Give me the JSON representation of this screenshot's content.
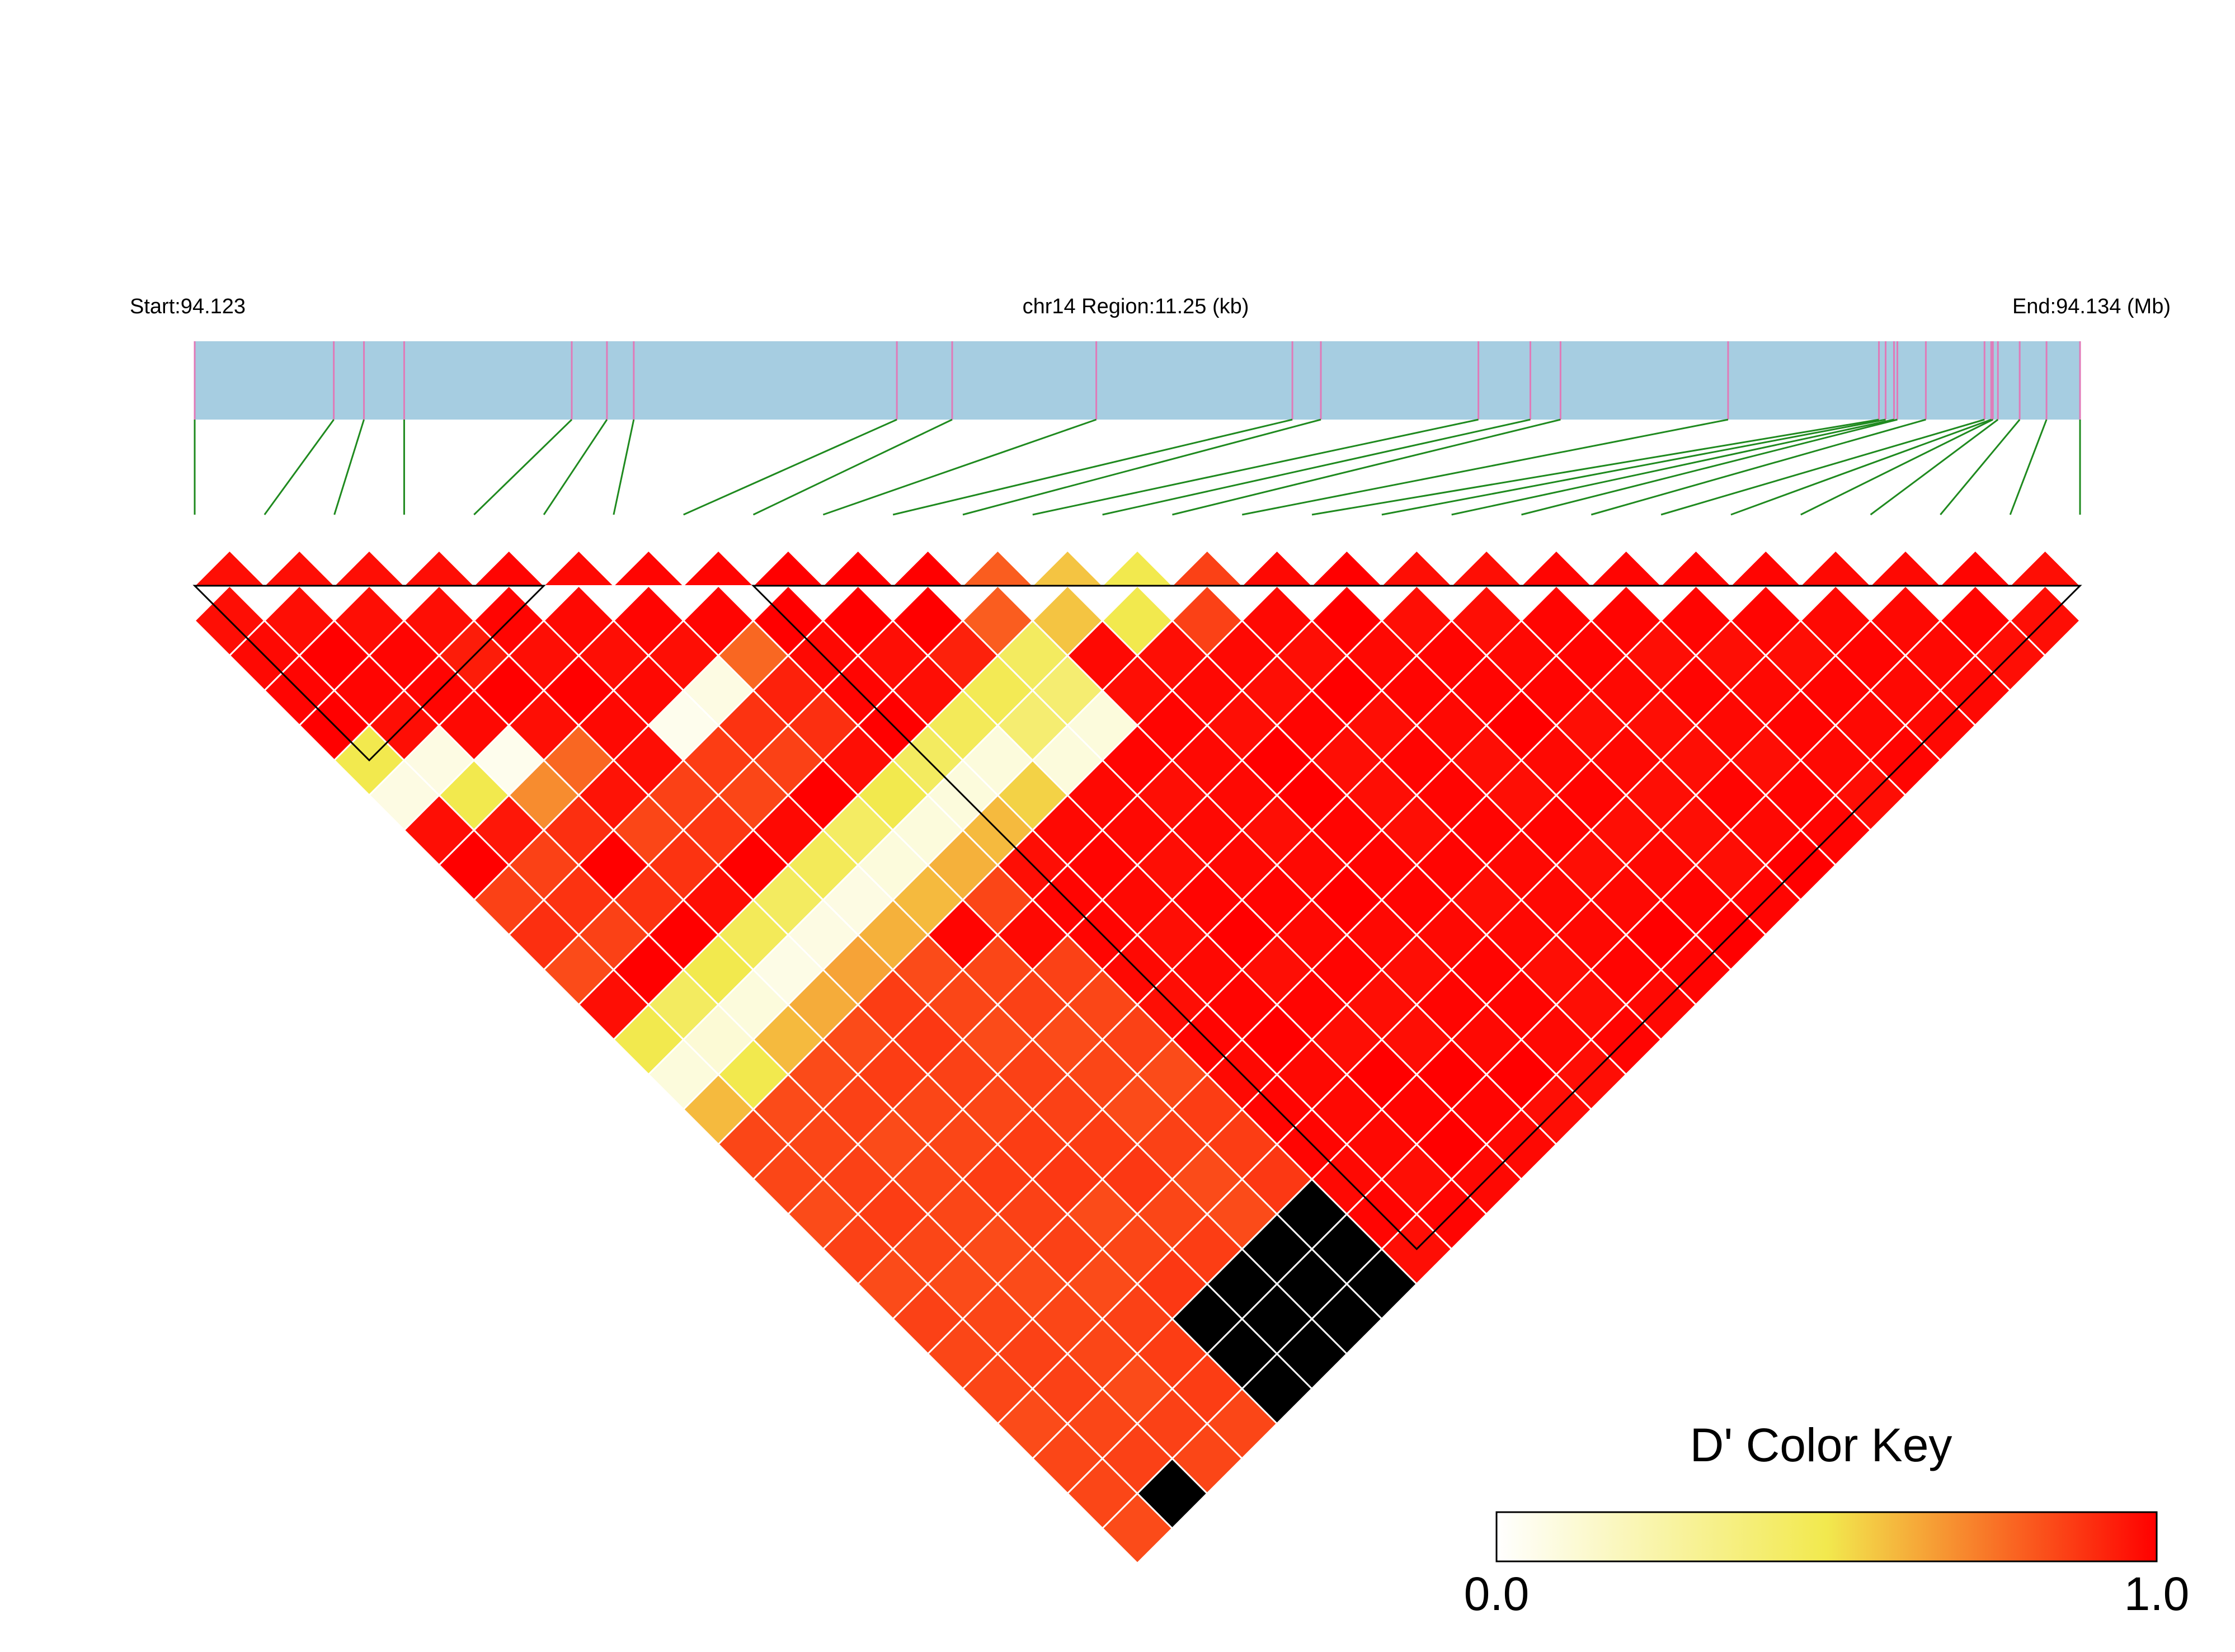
{
  "chart_data": {
    "type": "heatmap",
    "subtype": "linkage-disequilibrium-triangle",
    "region": {
      "start_label": "Start:94.123",
      "center_label": "chr14 Region:11.25 (kb)",
      "end_label": "End:94.134 (Mb)",
      "start_mb": 94.123,
      "end_mb": 94.134,
      "length_kb": 11.25
    },
    "snp_count": 28,
    "snp_positions_kb": [
      0.0,
      0.83,
      1.01,
      1.25,
      2.25,
      2.46,
      2.62,
      4.19,
      4.52,
      5.38,
      6.55,
      6.72,
      7.66,
      7.97,
      8.15,
      9.15,
      10.05,
      10.09,
      10.14,
      10.16,
      10.33,
      10.68,
      10.72,
      10.73,
      10.76,
      10.89,
      11.05,
      11.25
    ],
    "blocks": [
      [
        1,
        6
      ],
      [
        9,
        28
      ]
    ],
    "color_scale": {
      "min": 0.0,
      "max": 1.0,
      "colors": [
        "#ffffff",
        "#f2e94e",
        "#ff0000"
      ]
    },
    "legend": {
      "title": "D' Color Key",
      "min_label": "0.0",
      "max_label": "1.0",
      "position": "bottom-right"
    },
    "d_prime": [
      [
        0.97,
        0.98,
        0.99,
        1,
        0.99,
        0.98,
        0.97,
        1,
        0.86,
        0.9,
        0.84,
        0.84,
        0.83,
        0.96,
        0.85,
        0.85,
        0.85,
        0.84,
        0.86,
        0.84,
        0.86,
        0.85,
        0.85,
        0.84,
        0.85,
        0.85,
        0.84
      ],
      [
        0.97,
        1,
        0.99,
        0.97,
        1,
        0.99,
        0.95,
        0.86,
        0.89,
        0.86,
        0.86,
        0.85,
        0.96,
        0.85,
        0.84,
        0.85,
        0.86,
        0.87,
        0.85,
        0.84,
        0.85,
        0.86,
        0.86,
        0.85,
        0.86
      ],
      [
        0.97,
        0.99,
        0.99,
        0.98,
        0.99,
        0.98,
        0.9,
        1,
        0.89,
        0.86,
        0.85,
        0.97,
        0.85,
        0.84,
        0.86,
        0.84,
        0.85,
        0.85,
        0.84,
        0.84,
        0.85,
        0.85,
        0.84,
        0.86,
        0.85
      ],
      [
        0.97,
        0.94,
        1,
        0.97,
        0.98,
        0.96,
        0.85,
        0.89,
        0.89,
        0.99,
        0.88,
        0.84,
        0.84,
        0.87,
        0.85,
        0.85,
        0.87,
        0.86,
        0.86,
        0.84,
        0.86,
        0.87,
        0.87,
        0.85
      ],
      [
        0.99,
        0.97,
        1,
        0.98,
        0.97,
        0.86,
        0.88,
        0.86,
        0.88,
        0.97,
        0.86,
        0.87,
        0.88,
        0.86,
        0.85,
        0.87,
        0.88,
        0.84,
        0.85,
        0.88
      ],
      [
        0.98,
        0.97,
        0.98,
        0.98,
        0.87,
        0.85,
        0.86,
        0.86,
        0.85,
        0.98,
        0.84,
        0.85,
        0.84,
        0.86,
        0.86,
        0.87,
        0.88,
        0.85,
        0.87
      ],
      [
        0.99,
        0.97,
        0.99,
        0.89,
        0.86,
        0.87,
        0.84,
        0.85,
        0.84,
        0.99,
        0.85,
        0.86,
        0.84,
        0.85,
        0.84,
        0.86,
        0.84,
        0.84
      ],
      [
        0.99,
        0.97,
        0.86,
        0.9,
        0.85,
        0.87,
        0.84,
        0.86,
        0.85,
        0.98,
        0.86,
        0.85,
        0.86,
        0.84,
        0.87,
        0.87,
        0.88
      ],
      [
        0.99,
        0.98,
        0.99,
        0.99,
        1,
        0.98,
        1,
        0.97,
        0.99,
        0.99,
        0.98,
        0.97,
        0.99,
        0.98,
        0.99,
        0.99,
        0.98,
        0.99,
        0.97
      ],
      [
        0.98,
        0.97,
        0.98,
        0.99,
        1,
        0.98,
        0.98,
        0.99,
        0.98,
        0.97,
        0.98,
        0.99,
        1,
        0.98,
        0.98,
        0.98,
        0.97,
        0.99
      ],
      [
        1,
        0.97,
        0.99,
        0.98,
        0.99,
        0.98,
        0.98,
        0.97,
        0.99,
        1,
        0.97,
        0.99,
        0.97,
        1,
        0.99,
        1,
        0.98
      ],
      [
        0.99,
        0.98,
        1,
        0.99,
        0.99,
        0.97,
        0.98,
        0.98,
        0.99,
        0.98,
        0.99,
        0.97,
        0.97,
        1,
        0.99,
        0.98
      ],
      [
        0.99,
        0.98,
        0.97,
        0.99,
        0.98,
        0.98,
        0.97,
        0.98,
        1,
        0.98,
        0.97,
        0.99,
        0.98,
        1,
        0.97
      ],
      [
        0.97,
        0.97,
        0.98,
        0.97,
        1,
        1,
        0.99,
        0.99,
        0.99,
        0.98,
        0.99,
        0.99,
        0.98,
        0.97
      ],
      [
        1,
        0.98,
        0.97,
        0.99,
        0.97,
        0.97,
        0.97,
        0.99,
        0.97,
        0.98,
        0.97,
        0.97,
        0.99
      ],
      [
        0.98,
        0.97,
        1,
        0.97,
        0.99,
        0.99,
        0.99,
        0.98,
        0.98,
        0.98,
        0.99,
        0.98
      ],
      [
        1,
        0.98,
        0.99,
        0.98,
        0.97,
        0.97,
        0.99,
        0.97,
        0.98,
        1,
        0.99
      ],
      [
        0.97,
        0.99,
        0.99,
        1,
        0.98,
        0.99,
        0.97,
        0.98,
        0.99,
        1
      ],
      [
        0.97,
        0.98,
        0.99,
        0.97,
        0.98,
        0.97,
        0.97,
        0.97,
        0.99
      ],
      [
        0.99,
        0.99,
        0.98,
        0.97,
        0.97,
        0.99,
        0.98,
        1
      ],
      [
        0.99,
        0.97,
        0.99,
        0.98,
        0.97,
        0.99,
        0.99
      ],
      [
        0.99,
        0.97,
        0.98,
        0.99,
        0.98,
        0.97
      ],
      [
        0.99,
        0.97,
        0.99,
        0.98,
        0.99
      ],
      [
        0.98,
        0.99,
        0.98,
        0.98
      ],
      [
        0.98,
        0.98,
        0.98
      ],
      [
        0.99,
        0.97
      ],
      [
        0.97
      ]
    ],
    "d_prime_overrides": [
      [
        9,
        10,
        1.0
      ],
      [
        10,
        11,
        1.0
      ],
      [
        11,
        12,
        1.0
      ],
      [
        12,
        13,
        0.8
      ],
      [
        13,
        14,
        0.58
      ],
      [
        14,
        15,
        0.5
      ],
      [
        15,
        16,
        0.86
      ],
      [
        1,
        6,
        0.5
      ],
      [
        1,
        7,
        0.08
      ],
      [
        2,
        7,
        0.08
      ],
      [
        2,
        8,
        0.5
      ],
      [
        3,
        8,
        0.05
      ],
      [
        3,
        9,
        0.7
      ],
      [
        4,
        9,
        0.78
      ],
      [
        8,
        10,
        0.78
      ],
      [
        7,
        10,
        0.08
      ],
      [
        6,
        10,
        0.05
      ],
      [
        8,
        11,
        0.93
      ],
      [
        12,
        14,
        0.45
      ],
      [
        11,
        14,
        0.48
      ],
      [
        10,
        14,
        0.47
      ],
      [
        9,
        14,
        0.45
      ],
      [
        8,
        14,
        0.5
      ],
      [
        7,
        14,
        0.44
      ],
      [
        6,
        14,
        0.47
      ],
      [
        5,
        14,
        0.45
      ],
      [
        4,
        14,
        0.47
      ],
      [
        3,
        14,
        0.5
      ],
      [
        2,
        14,
        0.45
      ],
      [
        1,
        14,
        0.5
      ],
      [
        10,
        16,
        0.55
      ],
      [
        9,
        16,
        0.6
      ],
      [
        8,
        16,
        0.62
      ],
      [
        7,
        16,
        0.6
      ],
      [
        6,
        16,
        0.62
      ],
      [
        5,
        16,
        0.65
      ],
      [
        4,
        16,
        0.63
      ],
      [
        3,
        16,
        0.6
      ],
      [
        2,
        16,
        0.5
      ],
      [
        1,
        16,
        0.6
      ],
      [
        12,
        15,
        0.4
      ],
      [
        11,
        15,
        0.4
      ],
      [
        11,
        13,
        0.93
      ],
      [
        10,
        13,
        0.97
      ],
      [
        9,
        13,
        1.0
      ],
      [
        8,
        13,
        0.97
      ],
      [
        7,
        13,
        1.0
      ],
      [
        6,
        13,
        0.98
      ],
      [
        5,
        13,
        1.0
      ],
      [
        4,
        13,
        0.97
      ],
      [
        3,
        13,
        1.0
      ],
      [
        2,
        13,
        1.0
      ],
      [
        1,
        13,
        0.97
      ],
      [
        12,
        16,
        0.1
      ],
      [
        11,
        16,
        0.1
      ],
      [
        10,
        15,
        0.1
      ],
      [
        9,
        15,
        0.1
      ],
      [
        8,
        15,
        0.1
      ],
      [
        7,
        15,
        0.1
      ],
      [
        6,
        15,
        0.08
      ],
      [
        5,
        15,
        0.08
      ],
      [
        4,
        15,
        0.07
      ],
      [
        3,
        15,
        0.1
      ],
      [
        2,
        15,
        0.12
      ],
      [
        1,
        15,
        0.1
      ]
    ]
  }
}
